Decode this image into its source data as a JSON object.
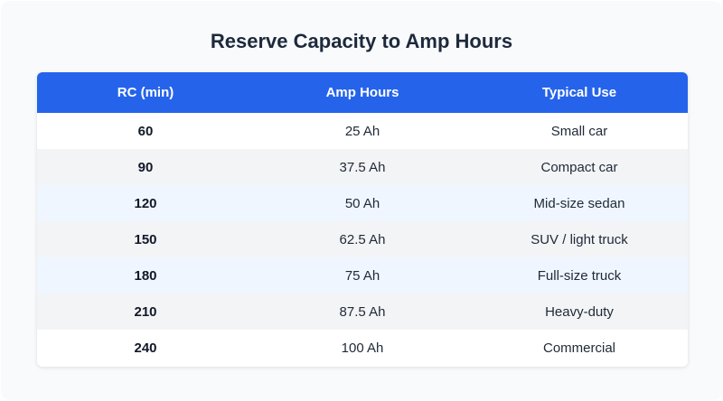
{
  "title": "Reserve Capacity to Amp Hours",
  "table": {
    "headers": [
      "RC (min)",
      "Amp Hours",
      "Typical Use"
    ],
    "rows": [
      [
        "60",
        "25 Ah",
        "Small car"
      ],
      [
        "90",
        "37.5 Ah",
        "Compact car"
      ],
      [
        "120",
        "50 Ah",
        "Mid-size sedan"
      ],
      [
        "150",
        "62.5 Ah",
        "SUV / light truck"
      ],
      [
        "180",
        "75 Ah",
        "Full-size truck"
      ],
      [
        "210",
        "87.5 Ah",
        "Heavy-duty"
      ],
      [
        "240",
        "100 Ah",
        "Commercial"
      ]
    ]
  },
  "colors": {
    "header_bg": "#2563eb",
    "header_text": "#ffffff",
    "row_alt_gray": "#f3f4f6",
    "row_alt_blue": "#eff6ff",
    "title_text": "#1e293b"
  }
}
